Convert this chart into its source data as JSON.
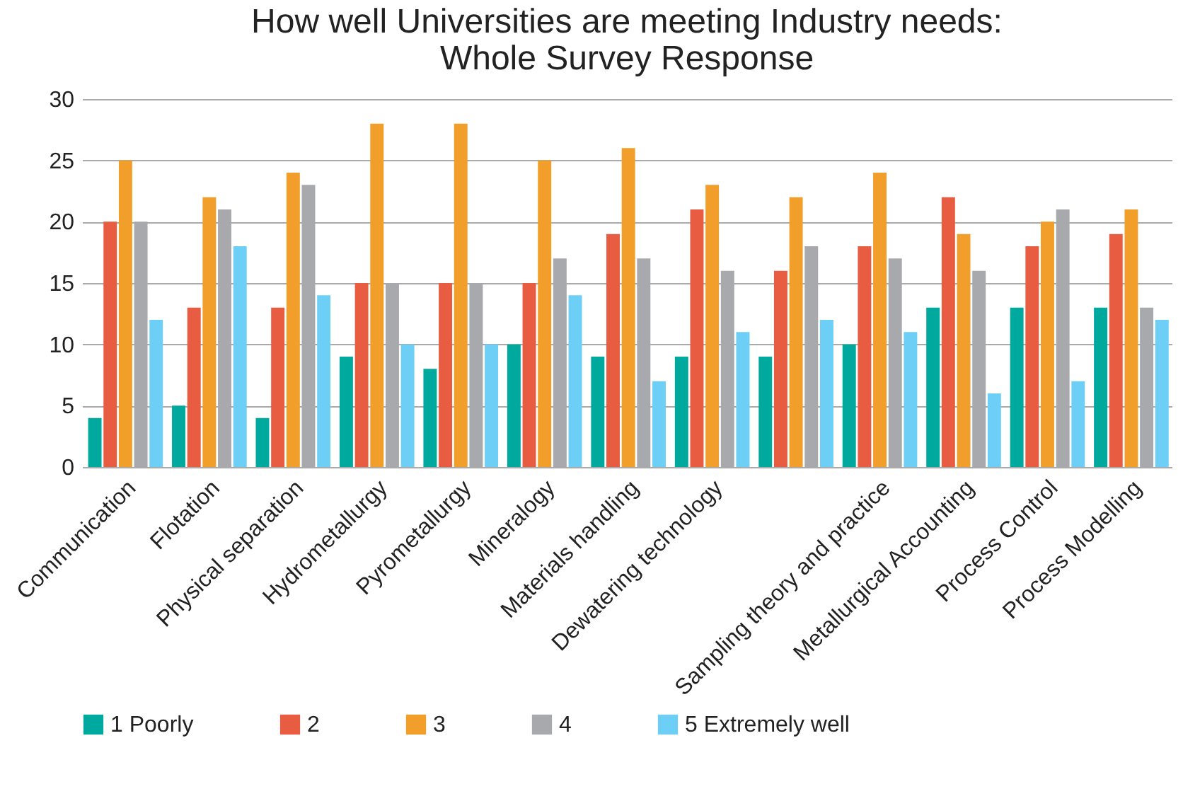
{
  "chart_data": {
    "type": "bar",
    "title": "How well Universities are meeting Industry needs:\nWhole Survey Response",
    "categories": [
      "Communication",
      "Flotation",
      "Physical separation",
      "Hydrometallurgy",
      "Pyrometallurgy",
      "Mineralogy",
      "Materials handling",
      "Dewatering technology",
      null,
      "Sampling theory and practice",
      "Metallurgical Accounting",
      "Process Control",
      "Process Modelling"
    ],
    "series": [
      {
        "name": "1 Poorly",
        "color": "#00a99d",
        "values": [
          4,
          5,
          4,
          9,
          8,
          10,
          9,
          9,
          9,
          10,
          13,
          13,
          13
        ]
      },
      {
        "name": "2",
        "color": "#e85c41",
        "values": [
          20,
          13,
          13,
          15,
          15,
          15,
          19,
          21,
          16,
          18,
          22,
          18,
          19
        ]
      },
      {
        "name": "3",
        "color": "#f29e2a",
        "values": [
          25,
          22,
          24,
          28,
          28,
          25,
          26,
          23,
          22,
          24,
          19,
          20,
          21
        ]
      },
      {
        "name": "4",
        "color": "#a8a9ad",
        "values": [
          20,
          21,
          23,
          15,
          15,
          17,
          17,
          16,
          18,
          17,
          16,
          21,
          13
        ]
      },
      {
        "name": "5 Extremely well",
        "color": "#6dcff6",
        "values": [
          12,
          18,
          14,
          10,
          10,
          14,
          7,
          11,
          12,
          11,
          6,
          7,
          12
        ]
      }
    ],
    "ylim": [
      0,
      30
    ],
    "yticks": [
      0,
      5,
      10,
      15,
      20,
      25,
      30
    ],
    "grid": "y",
    "legend": "bottom"
  }
}
